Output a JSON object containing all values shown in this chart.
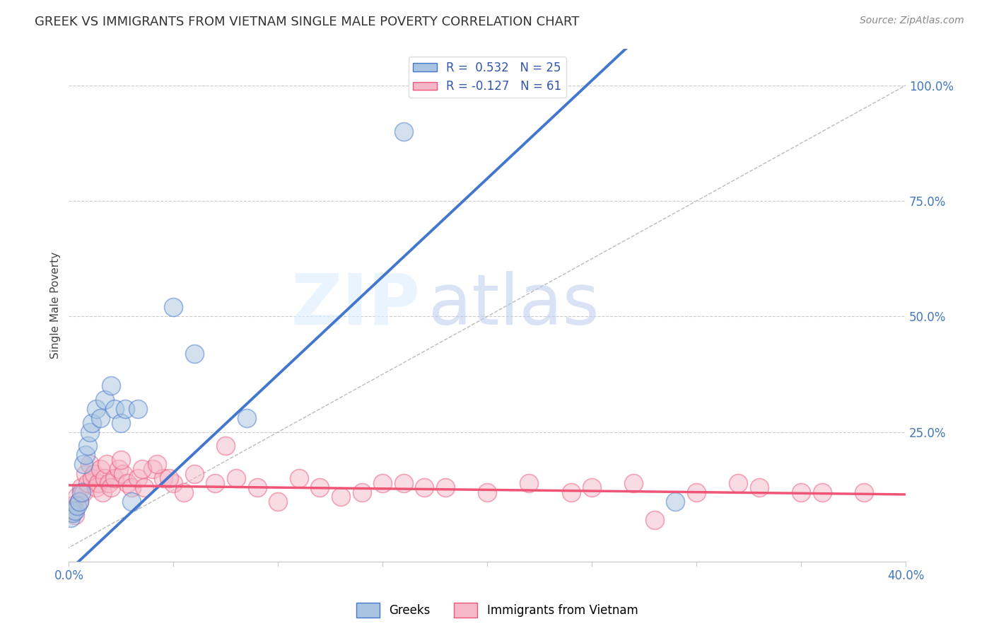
{
  "title": "GREEK VS IMMIGRANTS FROM VIETNAM SINGLE MALE POVERTY CORRELATION CHART",
  "source": "Source: ZipAtlas.com",
  "ylabel": "Single Male Poverty",
  "right_yticks": [
    "100.0%",
    "75.0%",
    "50.0%",
    "25.0%"
  ],
  "right_ytick_vals": [
    1.0,
    0.75,
    0.5,
    0.25
  ],
  "legend_label1": "R =  0.532   N = 25",
  "legend_label2": "R = -0.127   N = 61",
  "greek_color": "#A8C4E0",
  "vietnam_color": "#F4B8C8",
  "blue_line_color": "#4477CC",
  "pink_line_color": "#EE5577",
  "watermark_zip": "ZIP",
  "watermark_atlas": "atlas",
  "xlim": [
    0.0,
    0.4
  ],
  "ylim": [
    -0.03,
    1.08
  ],
  "xtick_positions": [
    0.0,
    0.05,
    0.1,
    0.15,
    0.2,
    0.25,
    0.3,
    0.35,
    0.4
  ],
  "greeks_x": [
    0.001,
    0.002,
    0.003,
    0.004,
    0.005,
    0.006,
    0.007,
    0.008,
    0.009,
    0.01,
    0.011,
    0.013,
    0.015,
    0.017,
    0.02,
    0.022,
    0.025,
    0.027,
    0.03,
    0.033,
    0.05,
    0.06,
    0.085,
    0.16,
    0.29
  ],
  "greeks_y": [
    0.065,
    0.075,
    0.08,
    0.09,
    0.1,
    0.12,
    0.18,
    0.2,
    0.22,
    0.25,
    0.27,
    0.3,
    0.28,
    0.32,
    0.35,
    0.3,
    0.27,
    0.3,
    0.1,
    0.3,
    0.52,
    0.42,
    0.28,
    0.9,
    0.1
  ],
  "vietnam_x": [
    0.001,
    0.002,
    0.003,
    0.004,
    0.005,
    0.006,
    0.007,
    0.008,
    0.009,
    0.01,
    0.011,
    0.012,
    0.013,
    0.014,
    0.015,
    0.016,
    0.017,
    0.018,
    0.019,
    0.02,
    0.022,
    0.024,
    0.026,
    0.028,
    0.03,
    0.033,
    0.036,
    0.04,
    0.045,
    0.05,
    0.055,
    0.06,
    0.07,
    0.08,
    0.09,
    0.1,
    0.11,
    0.12,
    0.14,
    0.16,
    0.18,
    0.2,
    0.22,
    0.25,
    0.27,
    0.3,
    0.33,
    0.36,
    0.38,
    0.025,
    0.035,
    0.042,
    0.048,
    0.075,
    0.13,
    0.15,
    0.17,
    0.24,
    0.28,
    0.32,
    0.35
  ],
  "vietnam_y": [
    0.09,
    0.08,
    0.07,
    0.11,
    0.1,
    0.13,
    0.12,
    0.16,
    0.14,
    0.18,
    0.15,
    0.16,
    0.13,
    0.14,
    0.17,
    0.12,
    0.15,
    0.18,
    0.14,
    0.13,
    0.15,
    0.17,
    0.16,
    0.14,
    0.13,
    0.15,
    0.13,
    0.17,
    0.15,
    0.14,
    0.12,
    0.16,
    0.14,
    0.15,
    0.13,
    0.1,
    0.15,
    0.13,
    0.12,
    0.14,
    0.13,
    0.12,
    0.14,
    0.13,
    0.14,
    0.12,
    0.13,
    0.12,
    0.12,
    0.19,
    0.17,
    0.18,
    0.15,
    0.22,
    0.11,
    0.14,
    0.13,
    0.12,
    0.06,
    0.14,
    0.12
  ],
  "blue_trend_x0": 0.0,
  "blue_trend_y0": -0.05,
  "blue_trend_x1": 0.165,
  "blue_trend_y1": 0.65,
  "pink_trend_x0": 0.0,
  "pink_trend_x1": 0.4,
  "pink_trend_y0": 0.135,
  "pink_trend_y1": 0.115
}
